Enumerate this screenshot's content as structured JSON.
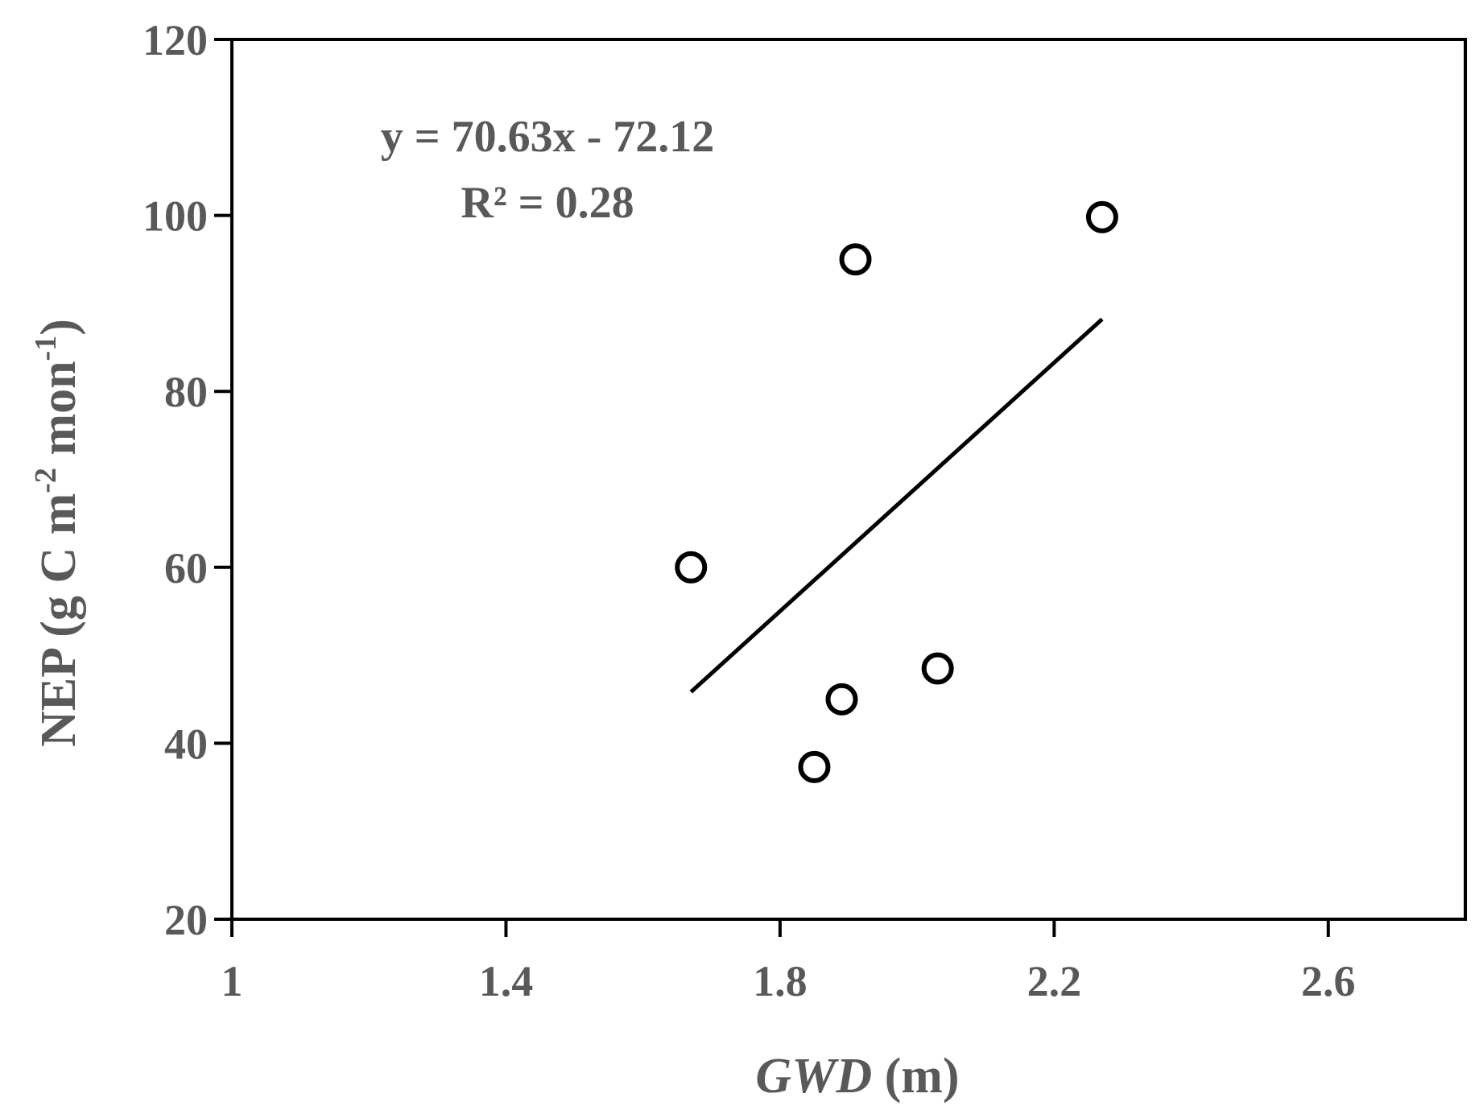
{
  "chart_data": {
    "type": "scatter",
    "xlabel": {
      "italic": "GWD",
      "rest": " (m)"
    },
    "ylabel": {
      "base": "NEP (g C m",
      "exp1": "-2",
      "mid": " mon",
      "exp2": "-1",
      "end": ")"
    },
    "xlim": [
      1,
      2.8
    ],
    "ylim": [
      20,
      120
    ],
    "xticks": [
      1,
      1.4,
      1.8,
      2.2,
      2.6
    ],
    "xtick_labels": [
      "1",
      "1.4",
      "1.8",
      "2.2",
      "2.6"
    ],
    "yticks": [
      20,
      40,
      60,
      80,
      100,
      120
    ],
    "ytick_labels": [
      "20",
      "40",
      "60",
      "80",
      "100",
      "120"
    ],
    "points": [
      {
        "x": 1.67,
        "y": 60
      },
      {
        "x": 1.91,
        "y": 95
      },
      {
        "x": 2.27,
        "y": 99.8
      },
      {
        "x": 1.89,
        "y": 45
      },
      {
        "x": 2.03,
        "y": 48.5
      },
      {
        "x": 1.85,
        "y": 37.3
      }
    ],
    "trendline": {
      "slope": 70.63,
      "intercept": -72.12,
      "x_range": [
        1.67,
        2.27
      ]
    },
    "equation": "y = 70.63x - 72.12",
    "r_squared": "R² = 0.28",
    "grid": false,
    "legend": "none",
    "colors": {
      "text": "#595959",
      "axis": "#000000",
      "marker_stroke": "#000000",
      "marker_fill": "#ffffff",
      "trendline": "#000000"
    }
  }
}
